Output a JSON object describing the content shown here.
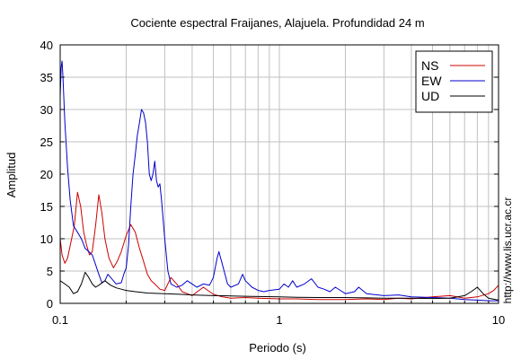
{
  "chart_data": {
    "type": "line",
    "title": "Cociente espectral Fraijanes, Alajuela. Profundidad 24 m",
    "xlabel": "Periodo (s)",
    "ylabel": "Amplitud",
    "credit": "http://www.lis.ucr.ac.cr",
    "xscale": "log",
    "xlim": [
      0.1,
      10
    ],
    "ylim": [
      0,
      40
    ],
    "xticks": [
      {
        "v": 0.1,
        "label": "0.1"
      },
      {
        "v": 1,
        "label": "1"
      },
      {
        "v": 10,
        "label": "10"
      }
    ],
    "yticks": [
      0,
      5,
      10,
      15,
      20,
      25,
      30,
      35,
      40
    ],
    "grid": true,
    "legend_position": "top-right",
    "series": [
      {
        "name": "NS",
        "color": "#cc0000",
        "points": [
          [
            0.1,
            10
          ],
          [
            0.102,
            7.5
          ],
          [
            0.105,
            6.2
          ],
          [
            0.108,
            7
          ],
          [
            0.112,
            9.5
          ],
          [
            0.116,
            12
          ],
          [
            0.12,
            17.2
          ],
          [
            0.124,
            15
          ],
          [
            0.128,
            11
          ],
          [
            0.132,
            9
          ],
          [
            0.136,
            7.5
          ],
          [
            0.14,
            8
          ],
          [
            0.145,
            12
          ],
          [
            0.15,
            16.8
          ],
          [
            0.155,
            14
          ],
          [
            0.16,
            10
          ],
          [
            0.167,
            7
          ],
          [
            0.175,
            5.5
          ],
          [
            0.182,
            6.5
          ],
          [
            0.19,
            8
          ],
          [
            0.2,
            10.5
          ],
          [
            0.21,
            12.2
          ],
          [
            0.22,
            11
          ],
          [
            0.23,
            8.5
          ],
          [
            0.24,
            6.5
          ],
          [
            0.25,
            4.5
          ],
          [
            0.26,
            3.5
          ],
          [
            0.27,
            3
          ],
          [
            0.285,
            2.2
          ],
          [
            0.3,
            2
          ],
          [
            0.32,
            4
          ],
          [
            0.34,
            3
          ],
          [
            0.36,
            1.8
          ],
          [
            0.38,
            1.5
          ],
          [
            0.4,
            1.2
          ],
          [
            0.45,
            2.5
          ],
          [
            0.5,
            1.4
          ],
          [
            0.55,
            1
          ],
          [
            0.6,
            0.8
          ],
          [
            0.7,
            0.9
          ],
          [
            0.8,
            0.8
          ],
          [
            1,
            0.7
          ],
          [
            1.2,
            0.7
          ],
          [
            1.5,
            0.6
          ],
          [
            2,
            0.6
          ],
          [
            2.5,
            0.7
          ],
          [
            3,
            0.6
          ],
          [
            3.5,
            0.8
          ],
          [
            4,
            0.7
          ],
          [
            5,
            1
          ],
          [
            6,
            1.2
          ],
          [
            7,
            0.8
          ],
          [
            8,
            1
          ],
          [
            9,
            1.5
          ],
          [
            9.5,
            2
          ],
          [
            10,
            2.8
          ]
        ]
      },
      {
        "name": "EW",
        "color": "#0000cc",
        "points": [
          [
            0.1,
            32
          ],
          [
            0.101,
            36.5
          ],
          [
            0.102,
            37.5
          ],
          [
            0.103,
            35
          ],
          [
            0.105,
            28
          ],
          [
            0.108,
            21
          ],
          [
            0.111,
            16
          ],
          [
            0.115,
            12
          ],
          [
            0.12,
            11
          ],
          [
            0.125,
            10
          ],
          [
            0.13,
            8.5
          ],
          [
            0.135,
            8
          ],
          [
            0.14,
            7.5
          ],
          [
            0.145,
            6
          ],
          [
            0.15,
            4.5
          ],
          [
            0.155,
            3.2
          ],
          [
            0.16,
            3.5
          ],
          [
            0.165,
            4.5
          ],
          [
            0.17,
            4
          ],
          [
            0.18,
            3
          ],
          [
            0.19,
            3.2
          ],
          [
            0.195,
            4.5
          ],
          [
            0.2,
            5.5
          ],
          [
            0.205,
            9
          ],
          [
            0.21,
            15
          ],
          [
            0.215,
            20
          ],
          [
            0.22,
            23
          ],
          [
            0.225,
            26
          ],
          [
            0.23,
            28
          ],
          [
            0.235,
            30
          ],
          [
            0.24,
            29.5
          ],
          [
            0.245,
            28
          ],
          [
            0.25,
            25
          ],
          [
            0.255,
            20
          ],
          [
            0.26,
            19
          ],
          [
            0.265,
            20
          ],
          [
            0.27,
            22
          ],
          [
            0.275,
            19
          ],
          [
            0.28,
            18
          ],
          [
            0.285,
            18.5
          ],
          [
            0.29,
            16
          ],
          [
            0.3,
            10
          ],
          [
            0.31,
            5
          ],
          [
            0.32,
            3
          ],
          [
            0.34,
            2.5
          ],
          [
            0.36,
            2.8
          ],
          [
            0.38,
            3.5
          ],
          [
            0.4,
            3
          ],
          [
            0.42,
            2.5
          ],
          [
            0.45,
            3
          ],
          [
            0.48,
            2.8
          ],
          [
            0.5,
            4
          ],
          [
            0.52,
            7
          ],
          [
            0.53,
            8
          ],
          [
            0.55,
            6
          ],
          [
            0.58,
            3
          ],
          [
            0.6,
            2.5
          ],
          [
            0.65,
            3
          ],
          [
            0.68,
            4.5
          ],
          [
            0.7,
            3.5
          ],
          [
            0.75,
            2.5
          ],
          [
            0.8,
            2
          ],
          [
            0.85,
            1.8
          ],
          [
            0.9,
            2
          ],
          [
            1,
            2.2
          ],
          [
            1.05,
            3
          ],
          [
            1.1,
            2.5
          ],
          [
            1.15,
            3.5
          ],
          [
            1.2,
            2.5
          ],
          [
            1.3,
            3
          ],
          [
            1.4,
            3.8
          ],
          [
            1.5,
            2.5
          ],
          [
            1.6,
            2.2
          ],
          [
            1.7,
            1.8
          ],
          [
            1.8,
            2.5
          ],
          [
            2,
            1.5
          ],
          [
            2.2,
            1.8
          ],
          [
            2.3,
            2.5
          ],
          [
            2.5,
            1.5
          ],
          [
            3,
            1.2
          ],
          [
            3.5,
            1.3
          ],
          [
            4,
            1
          ],
          [
            5,
            0.9
          ],
          [
            6,
            0.8
          ],
          [
            7,
            0.6
          ],
          [
            8,
            0.5
          ],
          [
            9,
            0.4
          ],
          [
            10,
            0.4
          ]
        ]
      },
      {
        "name": "UD",
        "color": "#000000",
        "points": [
          [
            0.1,
            3.5
          ],
          [
            0.105,
            3
          ],
          [
            0.11,
            2.5
          ],
          [
            0.115,
            1.5
          ],
          [
            0.12,
            1.8
          ],
          [
            0.125,
            3
          ],
          [
            0.13,
            4.8
          ],
          [
            0.135,
            4
          ],
          [
            0.14,
            3
          ],
          [
            0.145,
            2.5
          ],
          [
            0.15,
            2.8
          ],
          [
            0.16,
            3.5
          ],
          [
            0.17,
            2.8
          ],
          [
            0.18,
            2.4
          ],
          [
            0.19,
            2.2
          ],
          [
            0.2,
            2
          ],
          [
            0.22,
            1.8
          ],
          [
            0.25,
            1.6
          ],
          [
            0.3,
            1.5
          ],
          [
            0.35,
            1.4
          ],
          [
            0.4,
            1.3
          ],
          [
            0.5,
            1.2
          ],
          [
            0.6,
            1.15
          ],
          [
            0.7,
            1.1
          ],
          [
            0.8,
            1.05
          ],
          [
            1,
            1
          ],
          [
            1.2,
            0.95
          ],
          [
            1.5,
            0.9
          ],
          [
            2,
            0.9
          ],
          [
            2.5,
            0.85
          ],
          [
            3,
            0.8
          ],
          [
            4,
            0.8
          ],
          [
            5,
            0.75
          ],
          [
            6,
            0.8
          ],
          [
            7,
            1.2
          ],
          [
            7.5,
            1.8
          ],
          [
            8,
            2.5
          ],
          [
            8.5,
            1.5
          ],
          [
            9,
            0.8
          ],
          [
            10,
            0.5
          ]
        ]
      }
    ]
  }
}
